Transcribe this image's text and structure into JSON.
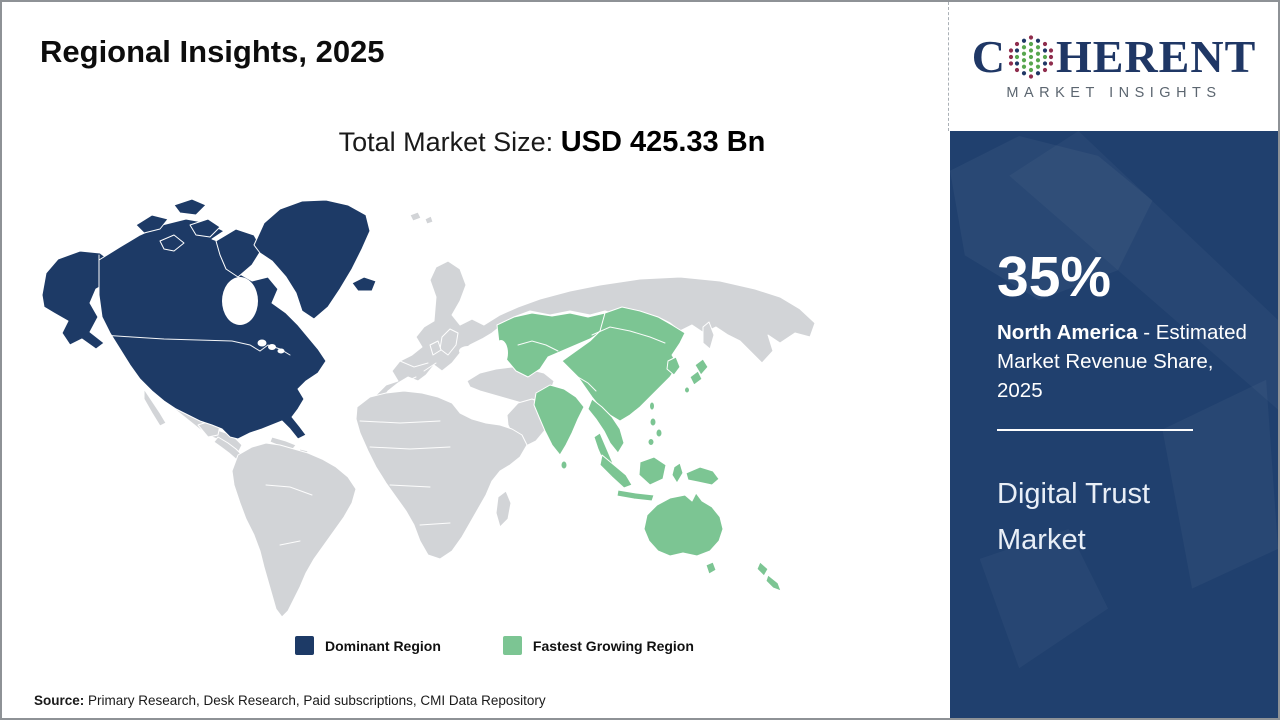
{
  "header": {
    "title": "Regional Insights, 2025"
  },
  "logo": {
    "prefix": "C",
    "suffix": "HERENT",
    "tagline": "MARKET INSIGHTS"
  },
  "market": {
    "size_label": "Total Market Size: ",
    "size_value": "USD 425.33 Bn"
  },
  "legend": {
    "dominant": {
      "label": "Dominant Region",
      "color": "#1d3a66"
    },
    "fastest": {
      "label": "Fastest Growing Region",
      "color": "#7cc593"
    }
  },
  "sidebar": {
    "share": "35%",
    "region": "North America ",
    "share_desc_suffix": "- Estimated Market Revenue Share, 2025",
    "market_name": "Digital Trust Market"
  },
  "source": {
    "label": "Source:",
    "text": " Primary Research, Desk Research, Paid subscriptions, CMI Data Repository"
  },
  "colors": {
    "dominant": "#1d3a66",
    "fastest_growing": "#7cc593",
    "neutral_land": "#d2d4d7",
    "panel_bg": "#20406e",
    "logo_navy": "#1f3765",
    "tagline_gray": "#5c6670"
  },
  "chart_data": {
    "type": "choropleth",
    "title": "Regional Insights, 2025",
    "market": "Digital Trust Market",
    "total_market_size": "USD 425.33 Bn",
    "legend": [
      "Dominant Region",
      "Fastest Growing Region"
    ],
    "regions": [
      {
        "name": "North America",
        "category": "Dominant Region",
        "estimated_market_revenue_share_2025": "35%"
      },
      {
        "name": "Asia Pacific",
        "category": "Fastest Growing Region"
      },
      {
        "name": "Rest of World",
        "category": "Not highlighted"
      }
    ]
  }
}
